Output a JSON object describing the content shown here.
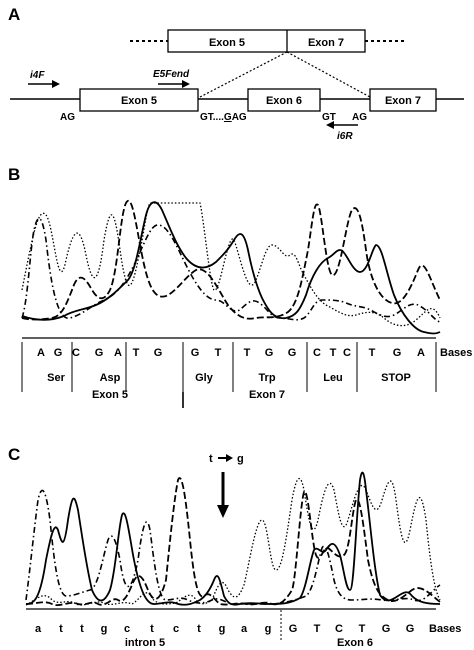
{
  "panels": {
    "a": {
      "letter": "A",
      "spliced": {
        "left": "Exon 5",
        "right": "Exon 7"
      },
      "primers": {
        "i4f": "i4F",
        "e5fend": "E5Fend",
        "i6r": "i6R"
      },
      "exons": {
        "e5": "Exon 5",
        "e6": "Exon 6",
        "e7": "Exon 7"
      },
      "sites": {
        "ag1": "AG",
        "gt_left": "GT....",
        "g_mut": "G",
        "ag_mut": "AG",
        "gt2": "GT",
        "ag2": "AG"
      }
    },
    "b": {
      "letter": "B",
      "bases_label": "Bases",
      "bases": [
        "A",
        "G",
        "C",
        "G",
        "A",
        "T",
        "G",
        "G",
        "T",
        "T",
        "G",
        "G",
        "C",
        "T",
        "C",
        "T",
        "G",
        "A"
      ],
      "codons": [
        "Ser",
        "Asp",
        "Gly",
        "Trp",
        "Leu",
        "STOP"
      ],
      "exon_left": "Exon 5",
      "exon_right": "Exon 7"
    },
    "c": {
      "letter": "C",
      "mutation": {
        "from": "t",
        "to": "g"
      },
      "bases_label": "Bases",
      "bases": [
        "a",
        "t",
        "t",
        "g",
        "c",
        "t",
        "c",
        "t",
        "g",
        "a",
        "g",
        "G",
        "T",
        "C",
        "T",
        "G",
        "G"
      ],
      "region_left": "intron 5",
      "region_right": "Exon 6"
    }
  }
}
